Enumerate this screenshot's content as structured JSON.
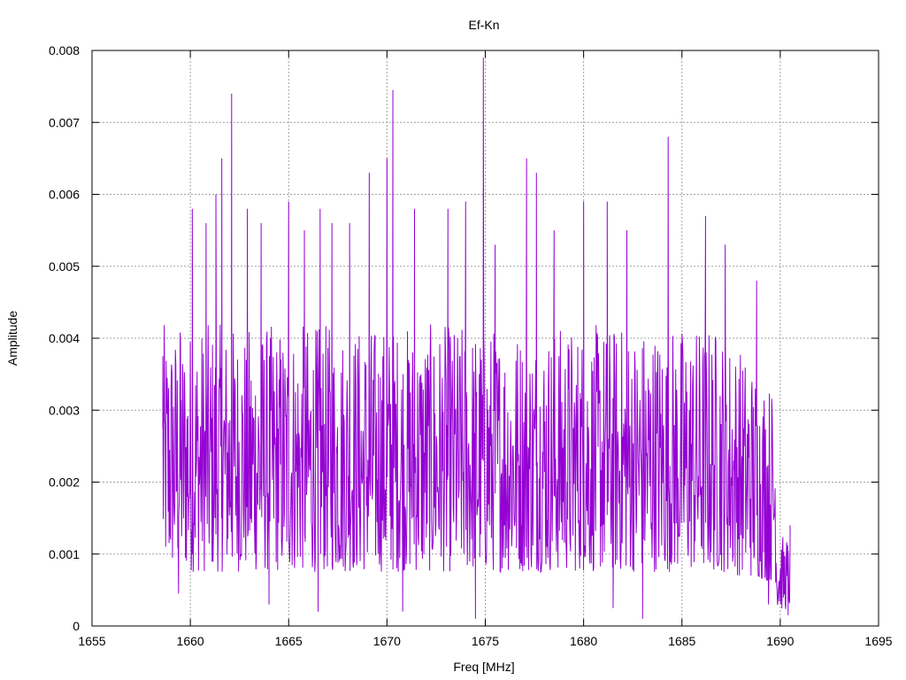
{
  "chart_data": {
    "type": "line",
    "title": "Ef-Kn",
    "xlabel": "Freq [MHz]",
    "ylabel": "Amplitude",
    "xlim": [
      1655,
      1695
    ],
    "ylim": [
      0,
      0.008
    ],
    "x_ticks": [
      1655,
      1660,
      1665,
      1670,
      1675,
      1680,
      1685,
      1690,
      1695
    ],
    "y_ticks": [
      0,
      0.001,
      0.002,
      0.003,
      0.004,
      0.005,
      0.006,
      0.007,
      0.008
    ],
    "x_tick_labels": [
      "1655",
      "1660",
      "1665",
      "1670",
      "1675",
      "1680",
      "1685",
      "1690",
      "1695"
    ],
    "y_tick_labels": [
      "0",
      "0.001",
      "0.002",
      "0.003",
      "0.004",
      "0.005",
      "0.006",
      "0.007",
      "0.008"
    ],
    "grid": true,
    "legend": "none",
    "series": [
      {
        "color": "#9400d3",
        "x_start": 1658.6,
        "x_end": 1690.5,
        "peaks": [
          {
            "x": 1658.6,
            "y": 0.00375
          },
          {
            "x": 1659.5,
            "y": 0.00395
          },
          {
            "x": 1660.1,
            "y": 0.0058
          },
          {
            "x": 1660.8,
            "y": 0.0056
          },
          {
            "x": 1661.3,
            "y": 0.006
          },
          {
            "x": 1661.6,
            "y": 0.0065
          },
          {
            "x": 1662.1,
            "y": 0.0074
          },
          {
            "x": 1662.9,
            "y": 0.0058
          },
          {
            "x": 1663.6,
            "y": 0.0056
          },
          {
            "x": 1665.0,
            "y": 0.0059
          },
          {
            "x": 1665.8,
            "y": 0.0055
          },
          {
            "x": 1666.6,
            "y": 0.0058
          },
          {
            "x": 1667.2,
            "y": 0.0056
          },
          {
            "x": 1668.1,
            "y": 0.0056
          },
          {
            "x": 1669.1,
            "y": 0.0063
          },
          {
            "x": 1670.0,
            "y": 0.0065
          },
          {
            "x": 1670.3,
            "y": 0.00745
          },
          {
            "x": 1671.4,
            "y": 0.0058
          },
          {
            "x": 1673.1,
            "y": 0.0058
          },
          {
            "x": 1674.0,
            "y": 0.0059
          },
          {
            "x": 1674.9,
            "y": 0.0079
          },
          {
            "x": 1675.5,
            "y": 0.0053
          },
          {
            "x": 1677.1,
            "y": 0.0065
          },
          {
            "x": 1677.6,
            "y": 0.0063
          },
          {
            "x": 1678.5,
            "y": 0.0055
          },
          {
            "x": 1680.0,
            "y": 0.0059
          },
          {
            "x": 1681.2,
            "y": 0.0059
          },
          {
            "x": 1682.2,
            "y": 0.0055
          },
          {
            "x": 1684.3,
            "y": 0.0068
          },
          {
            "x": 1686.2,
            "y": 0.0057
          },
          {
            "x": 1687.2,
            "y": 0.0053
          },
          {
            "x": 1688.8,
            "y": 0.0048
          },
          {
            "x": 1690.5,
            "y": 0.0014
          }
        ],
        "troughs": [
          {
            "x": 1659.4,
            "y": 0.00045
          },
          {
            "x": 1664.0,
            "y": 0.0003
          },
          {
            "x": 1666.5,
            "y": 0.0002
          },
          {
            "x": 1670.8,
            "y": 0.0002
          },
          {
            "x": 1674.5,
            "y": 0.0001
          },
          {
            "x": 1681.5,
            "y": 0.00025
          },
          {
            "x": 1683.0,
            "y": 0.0001
          },
          {
            "x": 1689.4,
            "y": 0.0003
          },
          {
            "x": 1690.4,
            "y": 0.00015
          }
        ]
      }
    ]
  }
}
